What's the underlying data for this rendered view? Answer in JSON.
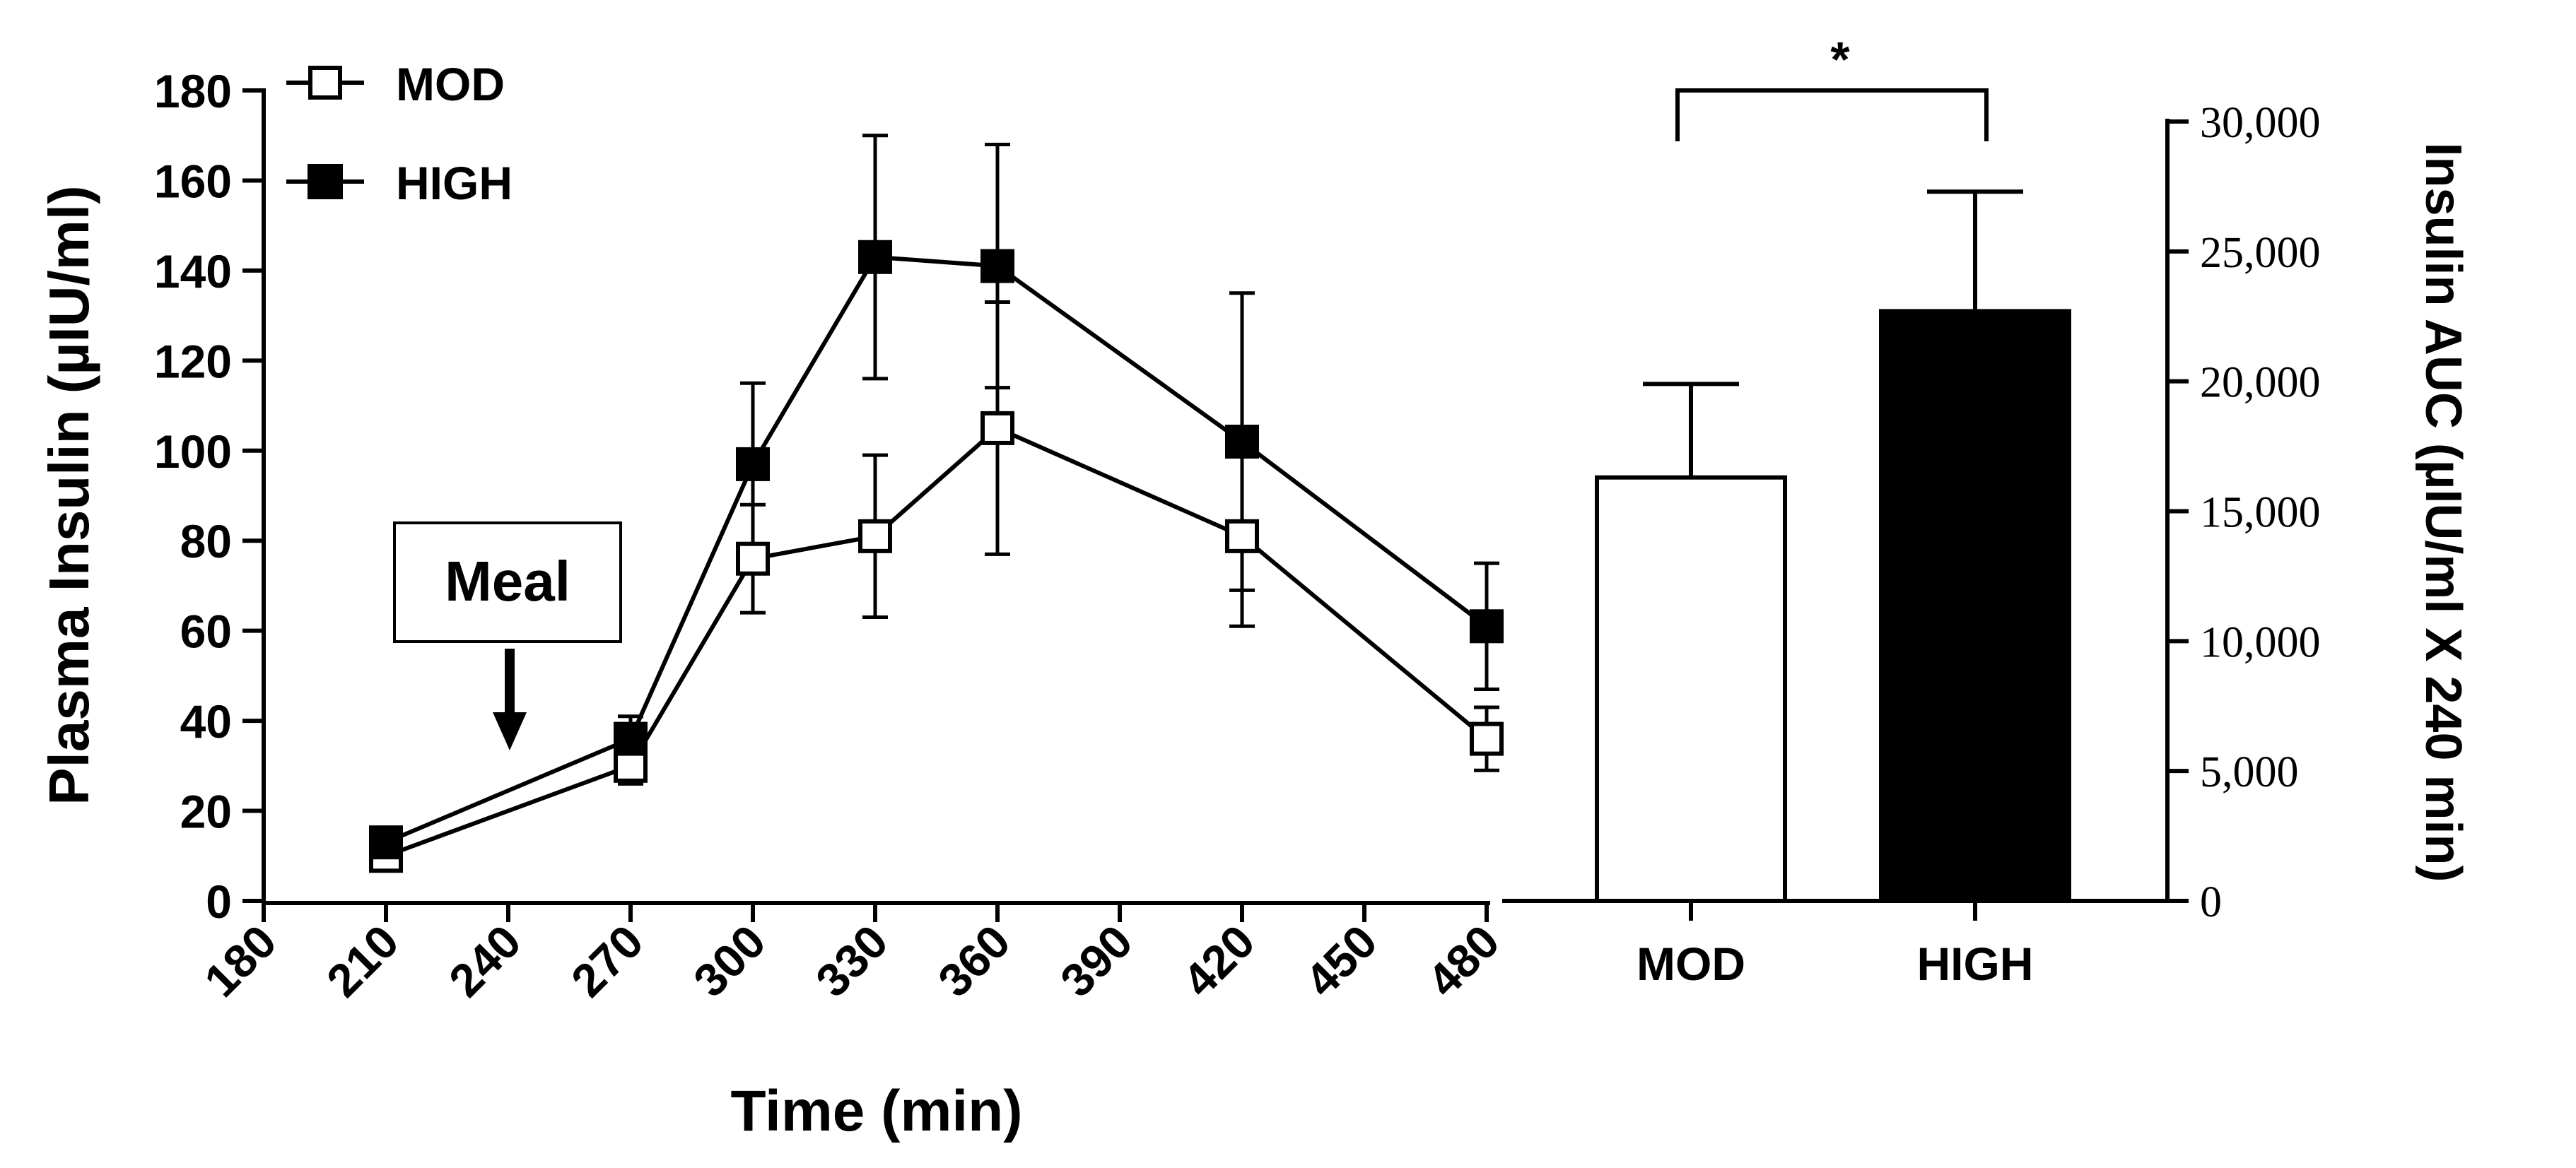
{
  "chart_data": [
    {
      "type": "line",
      "title": "",
      "xlabel": "Time (min)",
      "ylabel": "Plasma Insulin (µIU/ml)",
      "xlim": [
        180,
        480
      ],
      "ylim": [
        0,
        180
      ],
      "x_ticks": [
        "180",
        "210",
        "240",
        "270",
        "300",
        "330",
        "360",
        "390",
        "420",
        "450",
        "480"
      ],
      "y_ticks": [
        "0",
        "20",
        "40",
        "60",
        "80",
        "100",
        "120",
        "140",
        "160",
        "180"
      ],
      "legend_position": "top-left",
      "series": [
        {
          "name": "MOD",
          "marker": "open-square",
          "x": [
            210,
            270,
            300,
            330,
            360,
            420,
            480
          ],
          "values": [
            10,
            30,
            76,
            81,
            105,
            81,
            36
          ],
          "error": [
            3,
            4,
            12,
            18,
            28,
            20,
            7
          ]
        },
        {
          "name": "HIGH",
          "marker": "filled-square",
          "x": [
            210,
            270,
            300,
            330,
            360,
            420,
            480
          ],
          "values": [
            13,
            36,
            97,
            143,
            141,
            102,
            61
          ],
          "error": [
            2,
            5,
            18,
            27,
            27,
            33,
            14
          ]
        }
      ],
      "annotation": {
        "label": "Meal",
        "x": 240
      }
    },
    {
      "type": "bar",
      "title": "",
      "xlabel": "",
      "ylabel": "Insulin AUC (µIU/ml X 240 min)",
      "ylim": [
        0,
        30000
      ],
      "y_ticks": [
        "0",
        "5,000",
        "10,000",
        "15,000",
        "20,000",
        "25,000",
        "30,000"
      ],
      "categories": [
        "MOD",
        "HIGH"
      ],
      "values": [
        16300,
        22700
      ],
      "error": [
        3600,
        4600
      ],
      "bar_colors": [
        "#ffffff",
        "#000000"
      ],
      "significance": {
        "between": [
          "MOD",
          "HIGH"
        ],
        "label": "*"
      }
    }
  ]
}
